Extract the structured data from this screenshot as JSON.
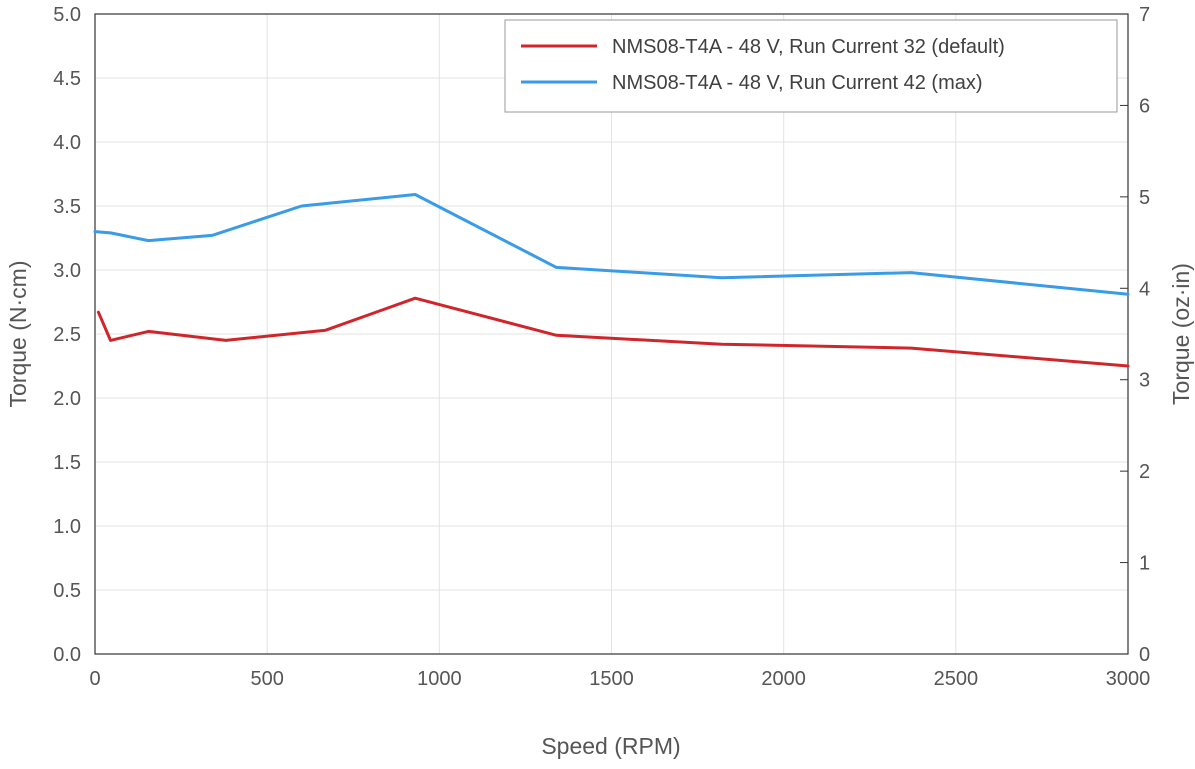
{
  "chart_data": {
    "type": "line",
    "title": "",
    "xlabel": "Speed (RPM)",
    "ylabel": "Torque (N·cm)",
    "y2label": "Torque (oz·in)",
    "xlim": [
      0,
      3000
    ],
    "ylim": [
      0,
      5
    ],
    "y2lim": [
      0,
      7
    ],
    "x_ticks": [
      0,
      500,
      1000,
      1500,
      2000,
      2500,
      3000
    ],
    "y_ticks": [
      "0.0",
      "0.5",
      "1.0",
      "1.5",
      "2.0",
      "2.5",
      "3.0",
      "3.5",
      "4.0",
      "4.5",
      "5.0"
    ],
    "y2_ticks": [
      0,
      1,
      2,
      3,
      4,
      5,
      6,
      7
    ],
    "grid": true,
    "legend_position": "top-right",
    "series": [
      {
        "name": "NMS08-T4A - 48 V, Run Current 32 (default)",
        "color": "#d0262b",
        "x": [
          10,
          45,
          155,
          380,
          670,
          930,
          1340,
          1820,
          2370,
          3000
        ],
        "y": [
          2.67,
          2.45,
          2.52,
          2.45,
          2.53,
          2.78,
          2.49,
          2.42,
          2.39,
          2.25
        ]
      },
      {
        "name": "NMS08-T4A - 48 V, Run Current 42 (max)",
        "color": "#3a9be6",
        "x": [
          0,
          45,
          155,
          340,
          600,
          930,
          1340,
          1820,
          2370,
          3000
        ],
        "y": [
          3.3,
          3.29,
          3.23,
          3.27,
          3.5,
          3.59,
          3.02,
          2.94,
          2.98,
          2.81
        ]
      }
    ]
  }
}
